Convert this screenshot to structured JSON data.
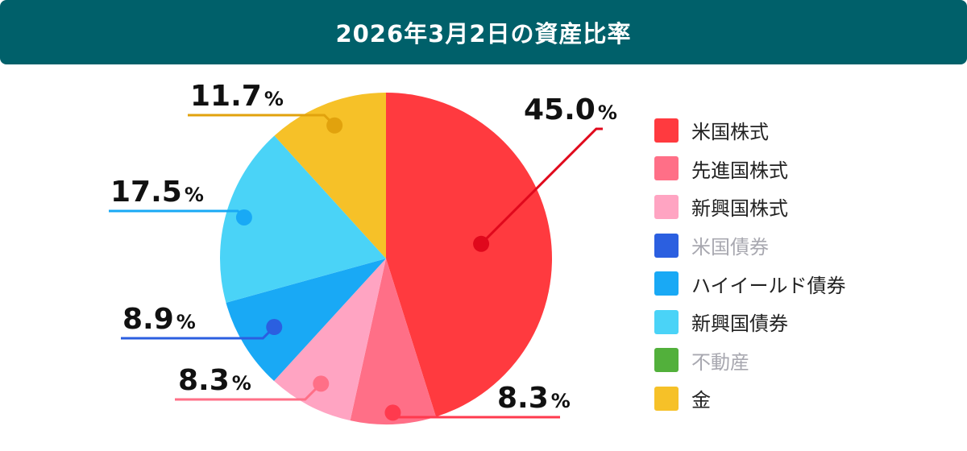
{
  "header": {
    "title": "2026年3月2日の資産比率"
  },
  "chart_data": {
    "type": "pie",
    "title": "2026年3月2日の資産比率",
    "unit": "%",
    "slices": [
      {
        "label": "米国株式",
        "value": 45.0,
        "display": "45.0",
        "color": "#ff3a3f",
        "line_color": "#e0081c",
        "shown": true
      },
      {
        "label": "先進国株式",
        "value": 8.3,
        "display": "8.3",
        "color": "#ff6f87",
        "line_color": "#ff3a4e",
        "shown": true
      },
      {
        "label": "新興国株式",
        "value": 8.3,
        "display": "8.3",
        "color": "#ffa4c2",
        "line_color": "#ff6f87",
        "shown": true
      },
      {
        "label": "ハイイールド債券",
        "value": 8.9,
        "display": "8.9",
        "color": "#19a9f5",
        "line_color": "#2b5fe0",
        "shown": true
      },
      {
        "label": "新興国債券",
        "value": 17.5,
        "display": "17.5",
        "color": "#4ad3f7",
        "line_color": "#19a9f5",
        "shown": true
      },
      {
        "label": "金",
        "value": 11.7,
        "display": "11.7",
        "color": "#f6c128",
        "line_color": "#e1a20d",
        "shown": true
      }
    ],
    "legend": [
      {
        "label": "米国株式",
        "color": "#ff3a3f",
        "dim": false
      },
      {
        "label": "先進国株式",
        "color": "#ff6f87",
        "dim": false
      },
      {
        "label": "新興国株式",
        "color": "#ffa4c2",
        "dim": false
      },
      {
        "label": "米国債券",
        "color": "#2b5fe0",
        "dim": true
      },
      {
        "label": "ハイイールド債券",
        "color": "#19a9f5",
        "dim": false
      },
      {
        "label": "新興国債券",
        "color": "#4ad3f7",
        "dim": false
      },
      {
        "label": "不動産",
        "color": "#52b03b",
        "dim": true
      },
      {
        "label": "金",
        "color": "#f6c128",
        "dim": false
      }
    ],
    "legend_placement": "right"
  }
}
